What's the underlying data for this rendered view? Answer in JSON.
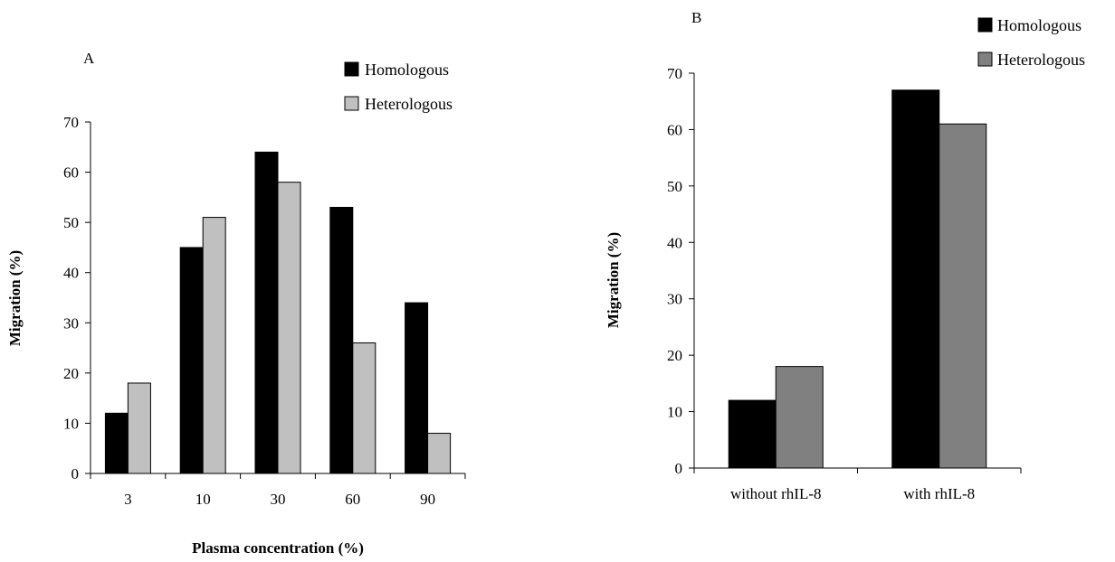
{
  "chart_data": [
    {
      "type": "bar",
      "panel_label": "A",
      "title": "",
      "xlabel": "Plasma concentration (%)",
      "ylabel": "Migration (%)",
      "categories": [
        "3",
        "10",
        "30",
        "60",
        "90"
      ],
      "series": [
        {
          "name": "Homologous",
          "values": [
            12,
            45,
            64,
            53,
            34
          ],
          "color": "#000000"
        },
        {
          "name": "Heterologous",
          "values": [
            18,
            51,
            58,
            26,
            8
          ],
          "color": "#c0c0c0"
        }
      ],
      "ylim": [
        0,
        70
      ],
      "yticks": [
        "0",
        "10",
        "20",
        "30",
        "40",
        "50",
        "60",
        "70"
      ],
      "grid": false,
      "legend": "top-right"
    },
    {
      "type": "bar",
      "panel_label": "B",
      "title": "",
      "xlabel": "",
      "ylabel": "Migration (%)",
      "categories": [
        "without rhIL-8",
        "with rhIL-8"
      ],
      "series": [
        {
          "name": "Homologous",
          "values": [
            12,
            67
          ],
          "color": "#000000"
        },
        {
          "name": "Heterologous",
          "values": [
            18,
            61
          ],
          "color": "#808080"
        }
      ],
      "ylim": [
        0,
        70
      ],
      "yticks": [
        "0",
        "10",
        "20",
        "30",
        "40",
        "50",
        "60",
        "70"
      ],
      "grid": false,
      "legend": "top-right"
    }
  ]
}
